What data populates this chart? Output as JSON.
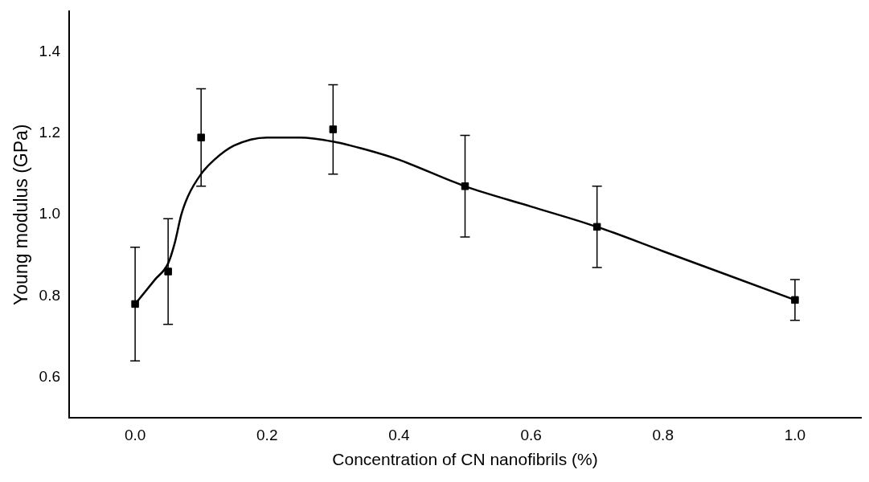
{
  "chart_data": {
    "type": "scatter",
    "xlabel": "Concentration of CN nanofibrils (%)",
    "ylabel": "Young modulus (GPa)",
    "xlim": [
      -0.1,
      1.1
    ],
    "ylim": [
      0.5,
      1.5
    ],
    "xticks": [
      {
        "value": 0,
        "label": "0.0"
      },
      0.2,
      0.4,
      0.6,
      0.8,
      {
        "value": 1,
        "label": "1.0"
      }
    ],
    "yticks": [
      0.6,
      0.8,
      {
        "value": 1,
        "label": "1.0"
      },
      1.2,
      1.4
    ],
    "grid": false,
    "legend": false,
    "series": [
      {
        "type": "scatter",
        "color": "#000000",
        "marker": "square",
        "x": [
          0,
          0.05,
          0.1,
          0.3,
          0.5,
          0.7,
          1.0
        ],
        "values": [
          0.78,
          0.86,
          1.19,
          1.21,
          1.07,
          0.97,
          0.79
        ],
        "errors": [
          0.14,
          0.13,
          0.12,
          0.11,
          0.125,
          0.1,
          0.05
        ]
      },
      {
        "type": "line",
        "color": "#000000",
        "marker": "none",
        "line_style": "solid",
        "x": [
          0,
          0.03,
          0.05,
          0.06,
          0.07,
          0.08,
          0.1,
          0.12,
          0.15,
          0.2,
          0.25,
          0.3,
          0.35,
          0.4,
          0.5,
          0.6,
          0.7,
          0.8,
          0.9,
          1.0
        ],
        "values": [
          0.78,
          0.84,
          0.88,
          0.93,
          1.0,
          1.045,
          1.1,
          1.135,
          1.17,
          1.19,
          1.19,
          1.18,
          1.16,
          1.135,
          1.07,
          1.02,
          0.97,
          0.91,
          0.85,
          0.79
        ]
      }
    ]
  }
}
